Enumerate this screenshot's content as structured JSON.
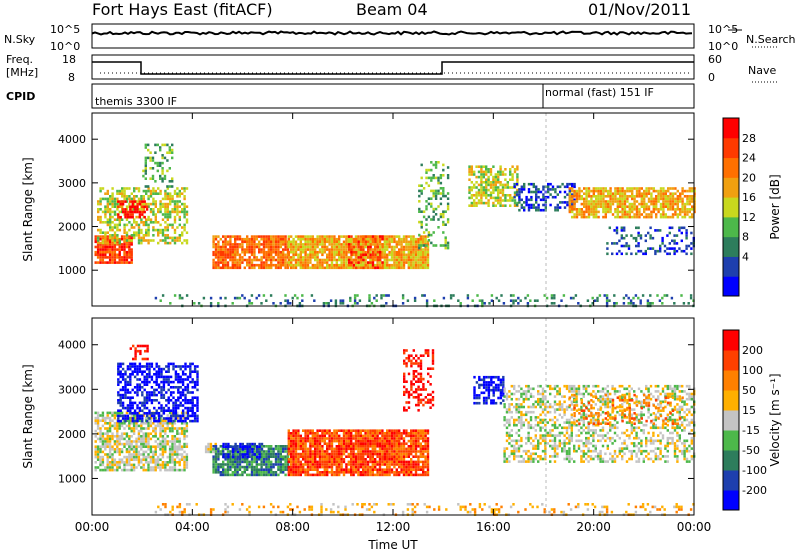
{
  "header": {
    "station": "Fort Hays East (fitACF)",
    "beam": "Beam 04",
    "date": "01/Nov/2011"
  },
  "top_panels": {
    "nsky_label": "N.Sky",
    "nsearch_label": "N.Search",
    "noise_ticks": [
      "10^5",
      "10^0"
    ],
    "freq_label_1": "Freq.",
    "freq_label_2": "[MHz]",
    "freq_ticks": [
      "18",
      "8"
    ],
    "nave_label": "Nave",
    "nave_ticks": [
      "60",
      "0"
    ],
    "cpid_label": "CPID",
    "cpid_1": "themis 3300 IF",
    "cpid_2": "normal (fast) 151 IF"
  },
  "chart_data": [
    {
      "type": "heatmap",
      "name": "Power",
      "xlabel": "",
      "ylabel": "Slant Range [km]",
      "x_ticks": [
        "00:00",
        "04:00",
        "08:00",
        "12:00",
        "16:00",
        "20:00",
        "00:00"
      ],
      "x_range_hours": [
        0,
        24
      ],
      "y_ticks": [
        1000,
        2000,
        3000,
        4000
      ],
      "y_range_km": [
        180,
        4600
      ],
      "colorbar": {
        "label": "Power [dB]",
        "ticks": [
          "28",
          "24",
          "20",
          "16",
          "12",
          "8",
          "4"
        ],
        "colors": [
          "#0000ff",
          "#1e3fae",
          "#2d7d5c",
          "#4db84a",
          "#c8d81e",
          "#f0a010",
          "#ff7000",
          "#ff3a00",
          "#ff0000"
        ]
      },
      "scatter_regions": [
        {
          "t0": 0.1,
          "t1": 1.6,
          "r0": 1200,
          "r1": 1800,
          "level": 7,
          "density": 0.85
        },
        {
          "t0": 0.2,
          "t1": 3.8,
          "r0": 1600,
          "r1": 2900,
          "level": 4,
          "density": 0.55
        },
        {
          "t0": 1.0,
          "t1": 2.2,
          "r0": 2200,
          "r1": 2600,
          "level": 8,
          "density": 0.6
        },
        {
          "t0": 2.0,
          "t1": 3.2,
          "r0": 2900,
          "r1": 3900,
          "level": 3,
          "density": 0.35
        },
        {
          "t0": 4.8,
          "t1": 7.8,
          "r0": 1050,
          "r1": 1800,
          "level": 6,
          "density": 0.85
        },
        {
          "t0": 7.8,
          "t1": 13.4,
          "r0": 1050,
          "r1": 1800,
          "level": 5,
          "density": 0.9
        },
        {
          "t0": 10.2,
          "t1": 11.6,
          "r0": 1050,
          "r1": 1800,
          "level": 7,
          "density": 0.5
        },
        {
          "t0": 13.0,
          "t1": 14.2,
          "r0": 1500,
          "r1": 3500,
          "level": 3,
          "density": 0.3
        },
        {
          "t0": 15.0,
          "t1": 17.0,
          "r0": 2500,
          "r1": 3400,
          "level": 4,
          "density": 0.6
        },
        {
          "t0": 16.8,
          "t1": 19.2,
          "r0": 2400,
          "r1": 3000,
          "level": 1,
          "density": 0.45
        },
        {
          "t0": 19.0,
          "t1": 24.0,
          "r0": 2200,
          "r1": 2900,
          "level": 5,
          "density": 0.75
        },
        {
          "t0": 20.5,
          "t1": 24.0,
          "r0": 1400,
          "r1": 2000,
          "level": 1,
          "density": 0.3
        },
        {
          "t0": 2.5,
          "t1": 24.0,
          "r0": 200,
          "r1": 450,
          "level": 2,
          "density": 0.2
        }
      ]
    },
    {
      "type": "heatmap",
      "name": "Velocity",
      "xlabel": "Time UT",
      "ylabel": "Slant Range [km]",
      "x_ticks": [
        "00:00",
        "04:00",
        "08:00",
        "12:00",
        "16:00",
        "20:00",
        "00:00"
      ],
      "x_range_hours": [
        0,
        24
      ],
      "y_ticks": [
        1000,
        2000,
        3000,
        4000
      ],
      "y_range_km": [
        180,
        4600
      ],
      "colorbar": {
        "label": "Velocity [m s⁻¹]",
        "ticks": [
          "200",
          "100",
          "50",
          "15",
          "-15",
          "-50",
          "-100",
          "-200"
        ],
        "colors": [
          "#0000ff",
          "#1e3fae",
          "#2d7d5c",
          "#4db84a",
          "#c4c4c4",
          "#ffb000",
          "#ff8000",
          "#ff4000",
          "#ff0000"
        ]
      },
      "scatter_regions": [
        {
          "t0": 0.1,
          "t1": 3.8,
          "r0": 1200,
          "r1": 2500,
          "level": 4,
          "density": 0.7
        },
        {
          "t0": 1.0,
          "t1": 4.2,
          "r0": 2300,
          "r1": 3600,
          "level": 0,
          "density": 0.6
        },
        {
          "t0": 1.5,
          "t1": 2.2,
          "r0": 3700,
          "r1": 4000,
          "level": 8,
          "density": 0.5
        },
        {
          "t0": 4.5,
          "t1": 5.2,
          "r0": 1600,
          "r1": 1800,
          "level": 4,
          "density": 0.5
        },
        {
          "t0": 4.8,
          "t1": 7.8,
          "r0": 1100,
          "r1": 1750,
          "level": 2,
          "density": 0.85
        },
        {
          "t0": 5.2,
          "t1": 6.8,
          "r0": 1500,
          "r1": 1800,
          "level": 0,
          "density": 0.6
        },
        {
          "t0": 7.8,
          "t1": 13.4,
          "r0": 1050,
          "r1": 2100,
          "level": 7,
          "density": 0.9
        },
        {
          "t0": 12.4,
          "t1": 13.6,
          "r0": 2500,
          "r1": 3900,
          "level": 8,
          "density": 0.4
        },
        {
          "t0": 15.2,
          "t1": 16.4,
          "r0": 2700,
          "r1": 3300,
          "level": 0,
          "density": 0.6
        },
        {
          "t0": 16.4,
          "t1": 24.0,
          "r0": 1400,
          "r1": 3100,
          "level": 4,
          "density": 0.45
        },
        {
          "t0": 19.0,
          "t1": 23.5,
          "r0": 2200,
          "r1": 2900,
          "level": 6,
          "density": 0.25
        },
        {
          "t0": 2.5,
          "t1": 24.0,
          "r0": 200,
          "r1": 450,
          "level": 5,
          "density": 0.2
        }
      ]
    }
  ]
}
